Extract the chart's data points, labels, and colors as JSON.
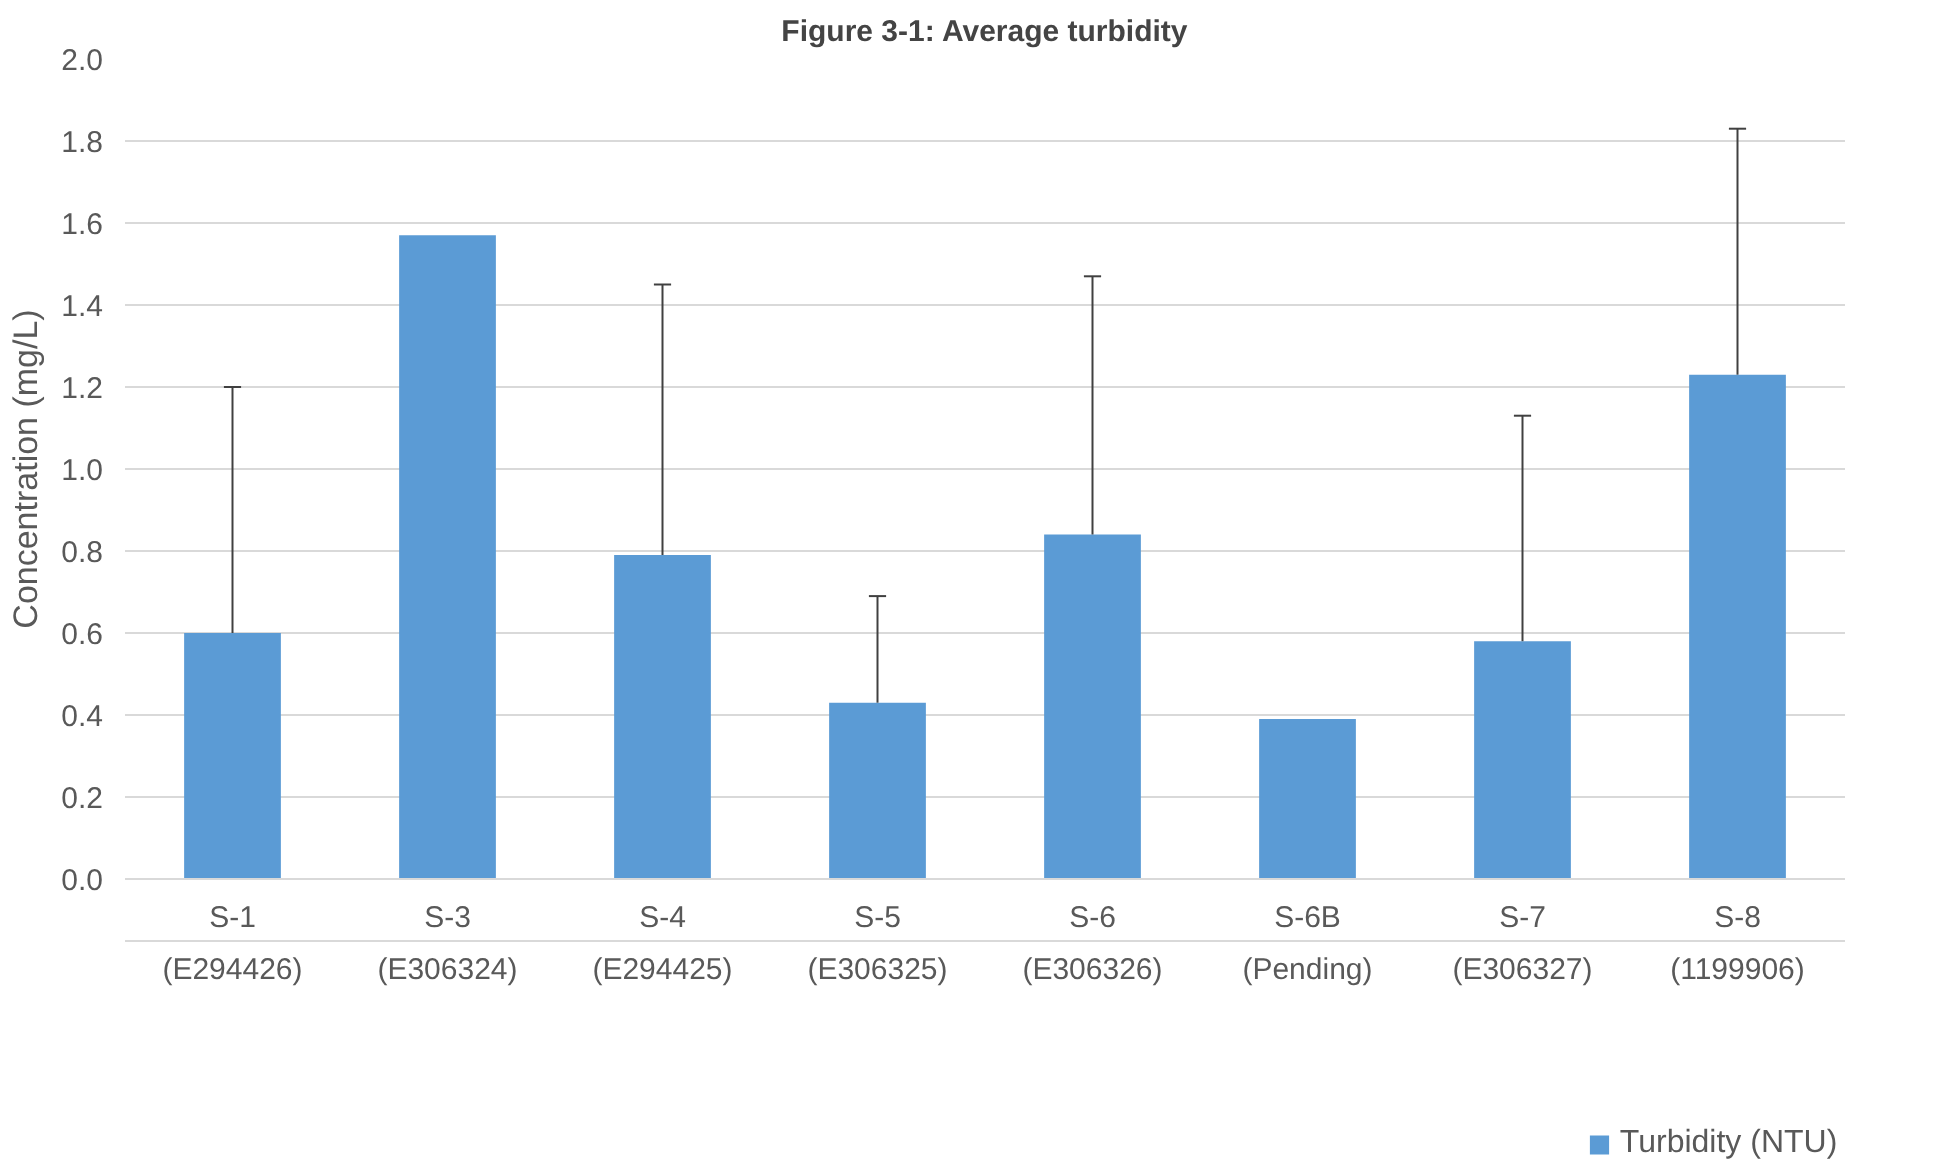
{
  "chart_data": {
    "type": "bar",
    "title": "Figure 3-1: Average turbidity",
    "ylabel": "Concentration (mg/L)",
    "categories": [
      "S-1\n(E294426)",
      "S-3\n(E306324)",
      "S-4\n(E294425)",
      "S-5\n(E306325)",
      "S-6\n(E306326)",
      "S-6B\n(Pending)",
      "S-7\n(E306327)",
      "S-8\n(1199906)"
    ],
    "series": [
      {
        "name": "Turbidity (NTU)",
        "color": "#5b9bd5",
        "values": [
          0.6,
          1.57,
          0.79,
          0.43,
          0.84,
          0.39,
          0.58,
          1.23
        ],
        "errors": [
          [
            0.6,
            1.2
          ],
          null,
          [
            0.79,
            1.45
          ],
          [
            0.43,
            0.69
          ],
          [
            0.84,
            1.47
          ],
          null,
          [
            0.58,
            1.13
          ],
          [
            1.23,
            1.83
          ]
        ]
      }
    ],
    "ylim": [
      0,
      2.0
    ],
    "yticks": [
      {
        "value": 0,
        "label": "0.0"
      },
      {
        "value": 0.2,
        "label": "0.2"
      },
      {
        "value": 0.4,
        "label": "0.4"
      },
      {
        "value": 0.6,
        "label": "0.6"
      },
      {
        "value": 0.8,
        "label": "0.8"
      },
      {
        "value": 1.0,
        "label": "1.0"
      },
      {
        "value": 1.2,
        "label": "1.2"
      },
      {
        "value": 1.4,
        "label": "1.4"
      },
      {
        "value": 1.6,
        "label": "1.6"
      },
      {
        "value": 1.8,
        "label": "1.8"
      },
      {
        "value": 2.0,
        "label": "2.0"
      }
    ],
    "grid": "y",
    "legend": "bottom"
  }
}
